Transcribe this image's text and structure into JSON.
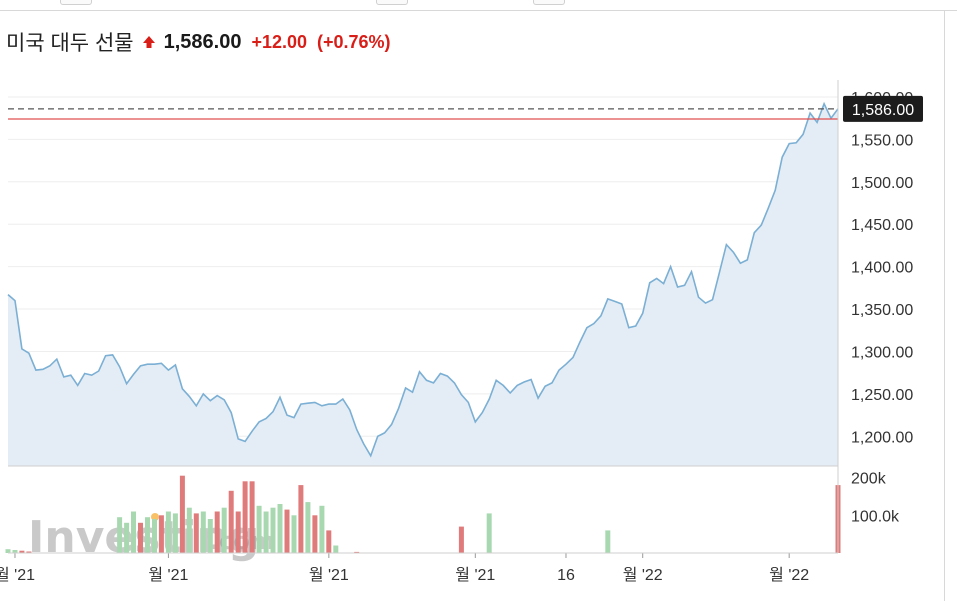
{
  "header": {
    "instrument_name": "미국 대두 선물",
    "price": "1,586.00",
    "change": "+12.00",
    "change_percent": "(+0.76%)",
    "direction_icon": "up-arrow-icon"
  },
  "watermark": {
    "brand": "Investing",
    "suffix": ".com"
  },
  "colors": {
    "up": "#d91e18",
    "price_line": "#7bafd4",
    "area_fill": "#e4edf5",
    "volume_up": "#e07b7b",
    "volume_down": "#a8d8b0",
    "last_price_tag": "#1c1c1c",
    "prev_close_line": "#e05050"
  },
  "chart_data": {
    "type": "area",
    "title": "미국 대두 선물",
    "y_ticks": [
      "1,200.00",
      "1,250.00",
      "1,300.00",
      "1,350.00",
      "1,400.00",
      "1,450.00",
      "1,500.00",
      "1,550.00",
      "1,600.00"
    ],
    "ylim": [
      1165,
      1620
    ],
    "last_price": 1586,
    "last_price_label": "1,586.00",
    "previous_close": 1574,
    "x_tick_labels": [
      "월 '21",
      "월 '21",
      "월 '21",
      "월 '21",
      "16",
      "월 '22",
      "월 '22"
    ],
    "series": [
      {
        "values": [
          1367,
          1360,
          1303,
          1298,
          1278,
          1279,
          1283,
          1291,
          1270,
          1272,
          1260,
          1274,
          1272,
          1277,
          1295,
          1296,
          1282,
          1262,
          1273,
          1283,
          1285,
          1285,
          1286,
          1278,
          1284,
          1256,
          1247,
          1236,
          1250,
          1242,
          1248,
          1243,
          1228,
          1197,
          1194,
          1206,
          1217,
          1221,
          1229,
          1246,
          1225,
          1222,
          1238,
          1239,
          1240,
          1236,
          1238,
          1238,
          1244,
          1231,
          1208,
          1191,
          1177,
          1200,
          1204,
          1214,
          1233,
          1257,
          1252,
          1276,
          1266,
          1263,
          1274,
          1271,
          1263,
          1249,
          1240,
          1217,
          1228,
          1244,
          1266,
          1260,
          1251,
          1260,
          1264,
          1267,
          1245,
          1259,
          1263,
          1278,
          1285,
          1293,
          1311,
          1328,
          1333,
          1342,
          1362,
          1359,
          1356,
          1328,
          1330,
          1345,
          1381,
          1386,
          1380,
          1400,
          1376,
          1378,
          1394,
          1364,
          1357,
          1361,
          1393,
          1426,
          1417,
          1404,
          1408,
          1440,
          1449,
          1469,
          1490,
          1529,
          1545,
          1546,
          1556,
          1581,
          1570,
          1592,
          1575,
          1586
        ]
      }
    ],
    "volume": {
      "y_ticks": [
        "100.0k",
        "200k"
      ],
      "ylim": [
        0,
        220
      ],
      "bars": [
        {
          "i": 0,
          "v": 10,
          "up": false
        },
        {
          "i": 1,
          "v": 8,
          "up": false
        },
        {
          "i": 2,
          "v": 6,
          "up": true
        },
        {
          "i": 3,
          "v": 4,
          "up": true
        },
        {
          "i": 16,
          "v": 95,
          "up": false
        },
        {
          "i": 17,
          "v": 80,
          "up": false
        },
        {
          "i": 18,
          "v": 110,
          "up": false
        },
        {
          "i": 19,
          "v": 80,
          "up": true
        },
        {
          "i": 20,
          "v": 95,
          "up": false
        },
        {
          "i": 21,
          "v": 90,
          "up": false
        },
        {
          "i": 22,
          "v": 100,
          "up": true
        },
        {
          "i": 23,
          "v": 110,
          "up": false
        },
        {
          "i": 24,
          "v": 105,
          "up": false
        },
        {
          "i": 25,
          "v": 205,
          "up": true
        },
        {
          "i": 26,
          "v": 120,
          "up": false
        },
        {
          "i": 27,
          "v": 105,
          "up": true
        },
        {
          "i": 28,
          "v": 110,
          "up": false
        },
        {
          "i": 29,
          "v": 90,
          "up": false
        },
        {
          "i": 30,
          "v": 110,
          "up": true
        },
        {
          "i": 31,
          "v": 120,
          "up": false
        },
        {
          "i": 32,
          "v": 165,
          "up": true
        },
        {
          "i": 33,
          "v": 110,
          "up": true
        },
        {
          "i": 34,
          "v": 190,
          "up": true
        },
        {
          "i": 35,
          "v": 190,
          "up": true
        },
        {
          "i": 36,
          "v": 125,
          "up": false
        },
        {
          "i": 37,
          "v": 110,
          "up": false
        },
        {
          "i": 38,
          "v": 120,
          "up": false
        },
        {
          "i": 39,
          "v": 130,
          "up": false
        },
        {
          "i": 40,
          "v": 115,
          "up": true
        },
        {
          "i": 41,
          "v": 100,
          "up": false
        },
        {
          "i": 42,
          "v": 180,
          "up": true
        },
        {
          "i": 43,
          "v": 135,
          "up": false
        },
        {
          "i": 44,
          "v": 100,
          "up": true
        },
        {
          "i": 45,
          "v": 125,
          "up": false
        },
        {
          "i": 46,
          "v": 60,
          "up": true
        },
        {
          "i": 47,
          "v": 20,
          "up": false
        },
        {
          "i": 50,
          "v": 3,
          "up": true
        },
        {
          "i": 65,
          "v": 70,
          "up": true
        },
        {
          "i": 69,
          "v": 105,
          "up": false
        },
        {
          "i": 86,
          "v": 60,
          "up": false
        },
        {
          "i": 119,
          "v": 180,
          "up": true
        }
      ]
    }
  }
}
